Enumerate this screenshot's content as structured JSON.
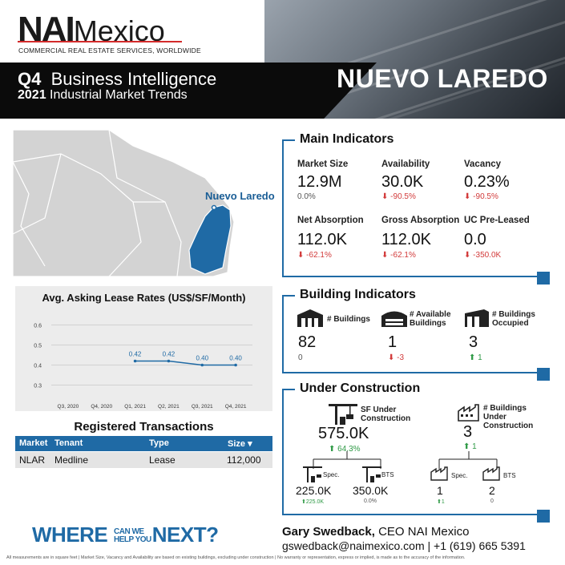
{
  "header": {
    "logo_nai": "NAI",
    "logo_mexico": "Mexico",
    "tagline": "COMMERCIAL REAL ESTATE SERVICES, WORLDWIDE",
    "quarter": "Q4",
    "report_name": "Business Intelligence",
    "year": "2021",
    "subtitle": "Industrial Market Trends",
    "city": "NUEVO LAREDO"
  },
  "map": {
    "label": "Nuevo Laredo"
  },
  "main_indicators": {
    "title": "Main Indicators",
    "items": [
      {
        "label": "Market Size",
        "value": "12.9M",
        "change": "0.0%",
        "trend": "flat"
      },
      {
        "label": "Availability",
        "value": "30.0K",
        "change": "-90.5%",
        "trend": "down"
      },
      {
        "label": "Vacancy",
        "value": "0.23%",
        "change": "-90.5%",
        "trend": "down"
      },
      {
        "label": "Net Absorption",
        "value": "112.0K",
        "change": "-62.1%",
        "trend": "down"
      },
      {
        "label": "Gross Absorption",
        "value": "112.0K",
        "change": "-62.1%",
        "trend": "down"
      },
      {
        "label": "UC Pre-Leased",
        "value": "0.0",
        "change": "-350.0K",
        "trend": "down"
      }
    ]
  },
  "building_indicators": {
    "title": "Building Indicators",
    "items": [
      {
        "label": "# Buildings",
        "value": "82",
        "change": "0",
        "trend": "flat"
      },
      {
        "label": "# Available Buildings",
        "value": "1",
        "change": "-3",
        "trend": "down"
      },
      {
        "label": "# Buildings Occupied",
        "value": "3",
        "change": "1",
        "trend": "up"
      }
    ]
  },
  "under_construction": {
    "title": "Under Construction",
    "sf_label": "SF Under Construction",
    "sf_value": "575.0K",
    "sf_change": "64.3%",
    "bld_label": "# Buildings Under Construction",
    "bld_value": "3",
    "bld_change": "1",
    "spec_label": "Spec.",
    "bts_label": "BTS",
    "sf_spec_value": "225.0K",
    "sf_spec_change": "225.0K",
    "sf_bts_value": "350.0K",
    "sf_bts_change": "0.0%",
    "bld_spec_value": "1",
    "bld_spec_change": "1",
    "bld_bts_value": "2",
    "bld_bts_change": "0"
  },
  "chart_data": {
    "type": "line",
    "title": "Avg. Asking Lease Rates (US$/SF/Month)",
    "categories": [
      "Q3, 2020",
      "Q4, 2020",
      "Q1, 2021",
      "Q2, 2021",
      "Q3, 2021",
      "Q4, 2021"
    ],
    "series": [
      {
        "values": [
          null,
          null,
          0.42,
          0.42,
          0.4,
          0.4
        ]
      }
    ],
    "data_labels": [
      "",
      "",
      "0.42",
      "0.42",
      "0.40",
      "0.40"
    ],
    "y_ticks": [
      "0.3",
      "0.4",
      "0.5",
      "0.6"
    ],
    "ylim": [
      0.25,
      0.65
    ],
    "grid": true,
    "color": "#1f6aa5"
  },
  "transactions": {
    "title": "Registered Transactions",
    "columns": [
      "Market",
      "Tenant",
      "Type",
      "Size ▾"
    ],
    "rows": [
      [
        "NLAR",
        "Medline",
        "Lease",
        "112,000"
      ]
    ]
  },
  "footer": {
    "where": "WHERE",
    "can_we": "CAN WE",
    "help_you": "HELP YOU",
    "next": "NEXT?",
    "contact_name": "Gary Swedback,",
    "contact_role": " CEO NAI Mexico",
    "contact_line": "gswedback@naimexico.com | +1 (619) 665 5391",
    "disclaimer": "All measurements are in square feet | Market Size, Vacancy and Availability are based on existing buildings, excluding under construction | No warranty or representation, express or implied, is made as to the accuracy of the information."
  },
  "colors": {
    "accent": "#1f6aa5",
    "negative": "#d23a3a",
    "positive": "#2f9a46",
    "map_land": "#d3d3d3",
    "map_highlight": "#1f6aa5"
  },
  "icons": [
    "building-icon",
    "available-building-icon",
    "occupied-building-icon",
    "crane-icon",
    "factory-icon"
  ]
}
